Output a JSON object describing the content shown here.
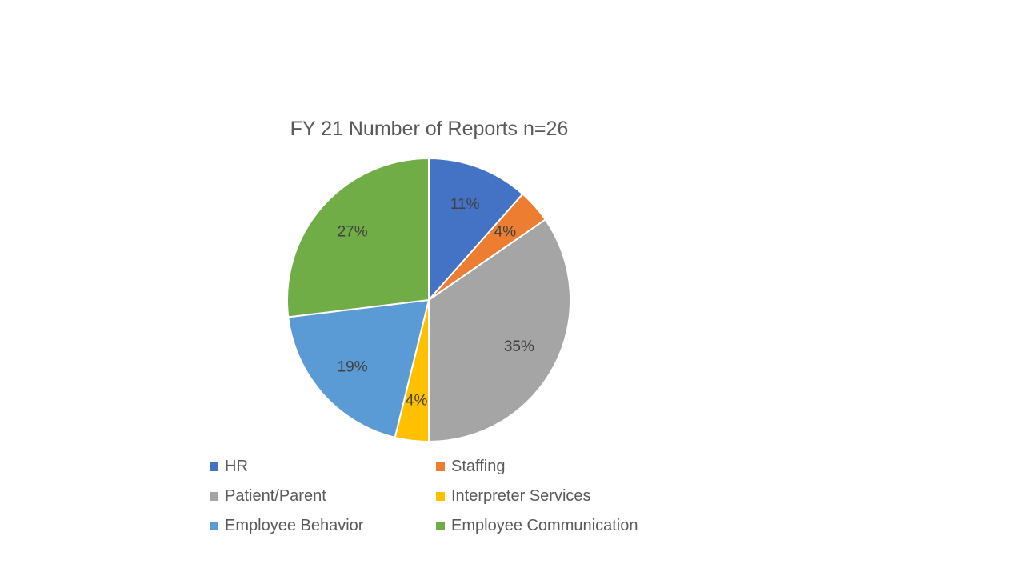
{
  "chart_data": {
    "type": "pie",
    "title": "FY 21 Number of Reports n=26",
    "categories": [
      "HR",
      "Staffing",
      "Patient/Parent",
      "Interpreter Services",
      "Employee Behavior",
      "Employee Communication"
    ],
    "values": [
      3,
      1,
      9,
      1,
      5,
      7
    ],
    "percent_labels": [
      "11%",
      "4%",
      "35%",
      "4%",
      "19%",
      "27%"
    ],
    "colors": [
      "#4472C4",
      "#ED7D31",
      "#A5A5A5",
      "#FFC000",
      "#5B9BD5",
      "#70AD47"
    ],
    "legend_position": "bottom",
    "start_angle": "12 o'clock",
    "direction": "clockwise"
  }
}
